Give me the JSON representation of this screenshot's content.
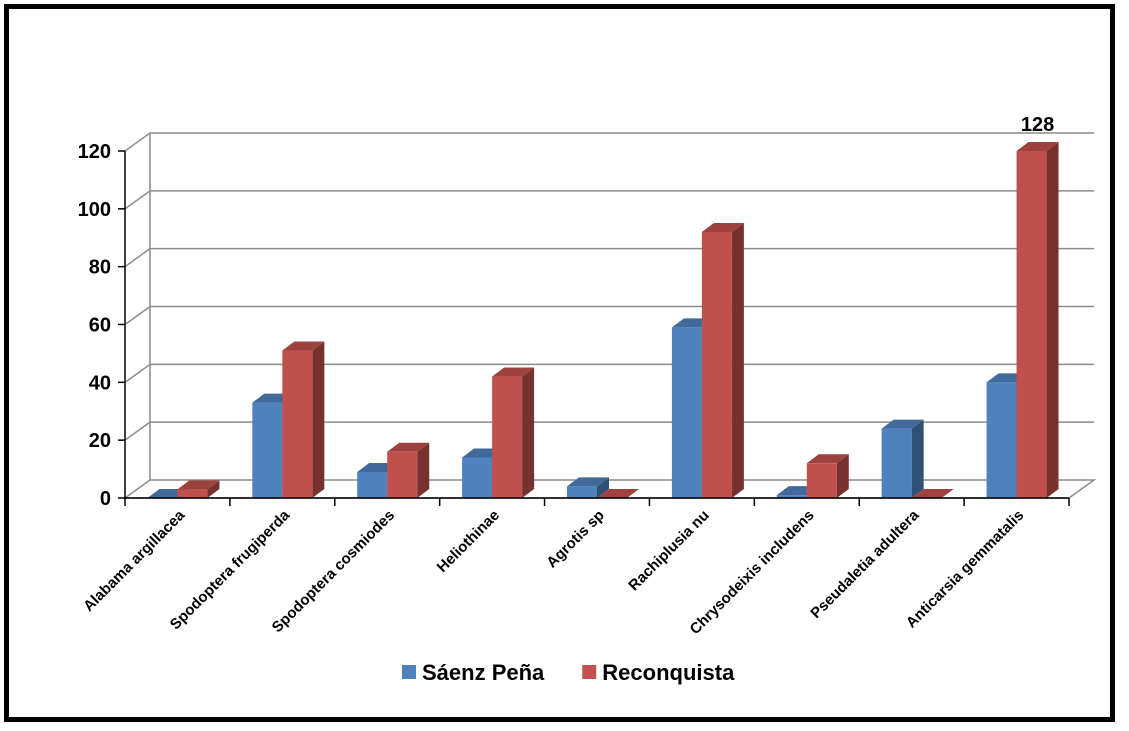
{
  "chart_data": {
    "type": "bar",
    "style": "3d-clustered-column",
    "categories": [
      "Alabama argillacea",
      "Spodoptera frugiperda",
      "Spodoptera cosmiodes",
      "Heliothinae",
      "Agrotis sp",
      "Rachiplusia nu",
      "Chrysodeixis includens",
      "Pseudaletia adultera",
      "Anticarsia gemmatalis"
    ],
    "series": [
      {
        "name": "Sáenz Peña",
        "values": [
          0,
          33,
          9,
          14,
          4,
          59,
          1,
          24,
          40
        ],
        "color": "#4F81BD"
      },
      {
        "name": "Reconquista",
        "values": [
          3,
          51,
          16,
          42,
          0,
          92,
          12,
          0,
          128
        ],
        "color": "#C0504D"
      }
    ],
    "ylim": [
      0,
      120
    ],
    "yticks": [
      0,
      20,
      40,
      60,
      80,
      100,
      120
    ],
    "grid": true,
    "legend": "bottom",
    "annotations": [
      {
        "text": "128",
        "category": "Anticarsia gemmatalis",
        "series": "Reconquista"
      }
    ]
  }
}
